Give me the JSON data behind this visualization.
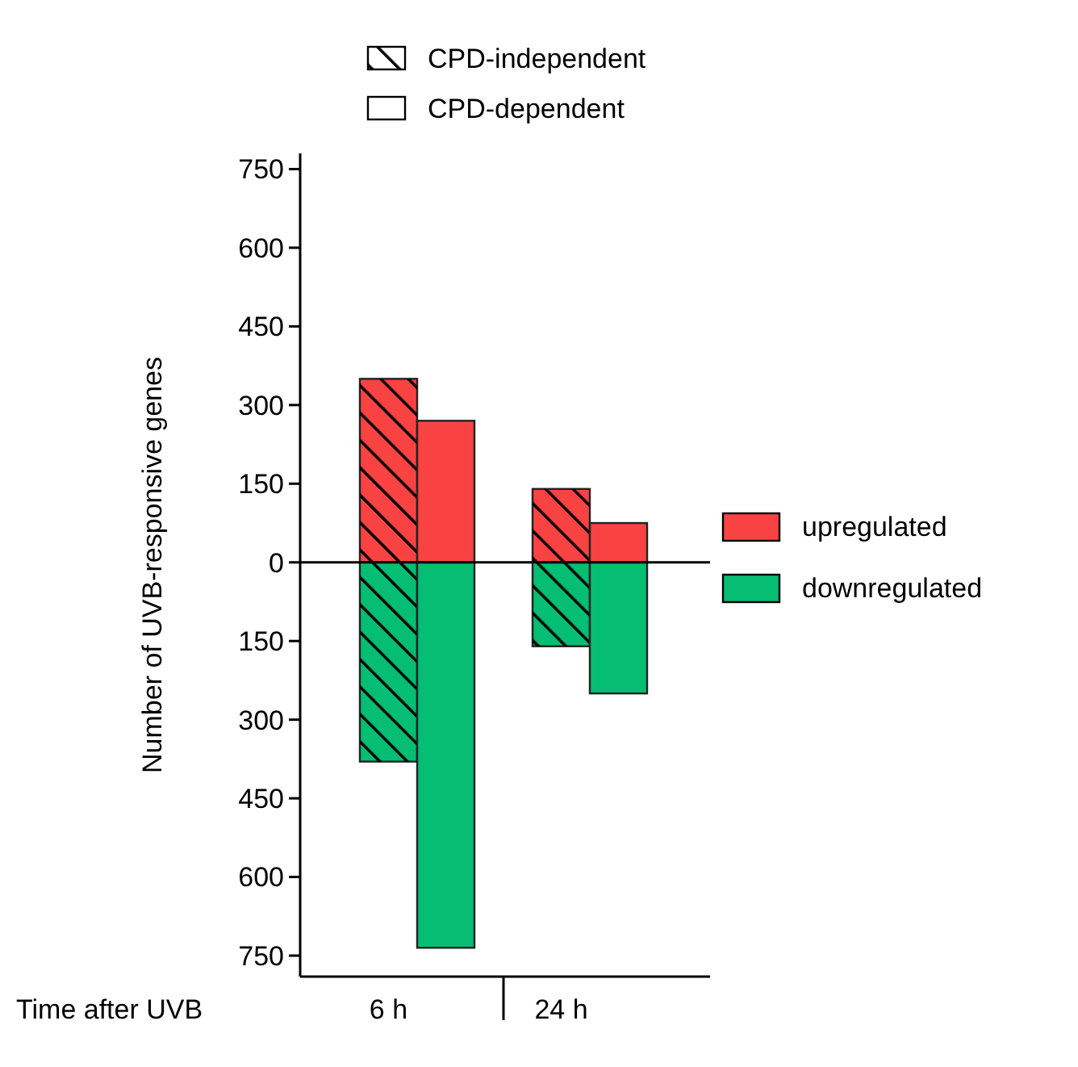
{
  "chart_data": {
    "type": "bar",
    "ylabel": "Number of UVB-responsive genes",
    "xlabel": "Time after UVB",
    "categories": [
      "6 h",
      null,
      "24 h",
      null
    ],
    "series": [
      {
        "name": "upregulated",
        "color": "#f94343",
        "values": [
          350,
          270,
          140,
          75
        ]
      },
      {
        "name": "downregulated",
        "color": "#05bd73",
        "values": [
          -380,
          -735,
          -160,
          -250
        ]
      }
    ],
    "stacked": true,
    "annotations": [
      "CPD-independent",
      "CPD-dependent"
    ],
    "ylim": [
      -790,
      780
    ],
    "yticks": [
      750,
      600,
      450,
      300,
      150,
      0,
      {
        "value": -150,
        "label": "150"
      },
      {
        "value": -300,
        "label": "300"
      },
      {
        "value": -450,
        "label": "450"
      },
      {
        "value": -600,
        "label": "600"
      },
      {
        "value": -750,
        "label": "750"
      }
    ],
    "legend": "right"
  }
}
